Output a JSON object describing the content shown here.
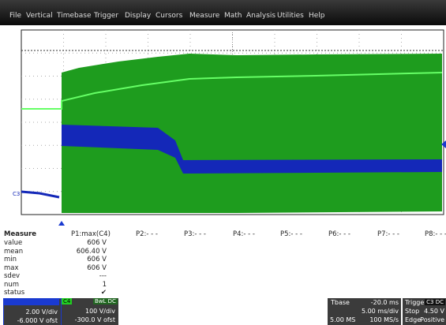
{
  "menu": [
    "File",
    "Vertical",
    "Timebase",
    "Trigger",
    "Display",
    "Cursors",
    "Measure",
    "Math",
    "Analysis",
    "Utilities",
    "Help"
  ],
  "trace_label": "C3",
  "measure": {
    "title": "Measure",
    "params": [
      "P1:max(C4)",
      "P2:- - -",
      "P3:- - -",
      "P4:- - -",
      "P5:- - -",
      "P6:- - -",
      "P7:- - -",
      "P8:- - -"
    ],
    "rows": [
      {
        "label": "value",
        "value": "606 V"
      },
      {
        "label": "mean",
        "value": "606.40 V"
      },
      {
        "label": "min",
        "value": "606 V"
      },
      {
        "label": "max",
        "value": "606 V"
      },
      {
        "label": "sdev",
        "value": "---"
      },
      {
        "label": "num",
        "value": "1"
      },
      {
        "label": "status",
        "value": "✔"
      }
    ]
  },
  "channels": [
    {
      "vdiv": "2.00 V/div",
      "offset": "-6.000 V ofst"
    },
    {
      "name": "C4",
      "coupling": "BwL DC",
      "vdiv": "100 V/div",
      "offset": "-300.0 V ofst"
    }
  ],
  "timebase": {
    "title": "Tbase",
    "delay": "-20.0 ms",
    "tdiv": "5.00 ms/div",
    "points": "5.00 MS",
    "rate": "100 MS/s"
  },
  "trigger": {
    "title": "Trigger",
    "source": "C3 DC",
    "mode": "Stop",
    "level": "4.50 V",
    "type": "Edge",
    "slope": "Positive"
  }
}
